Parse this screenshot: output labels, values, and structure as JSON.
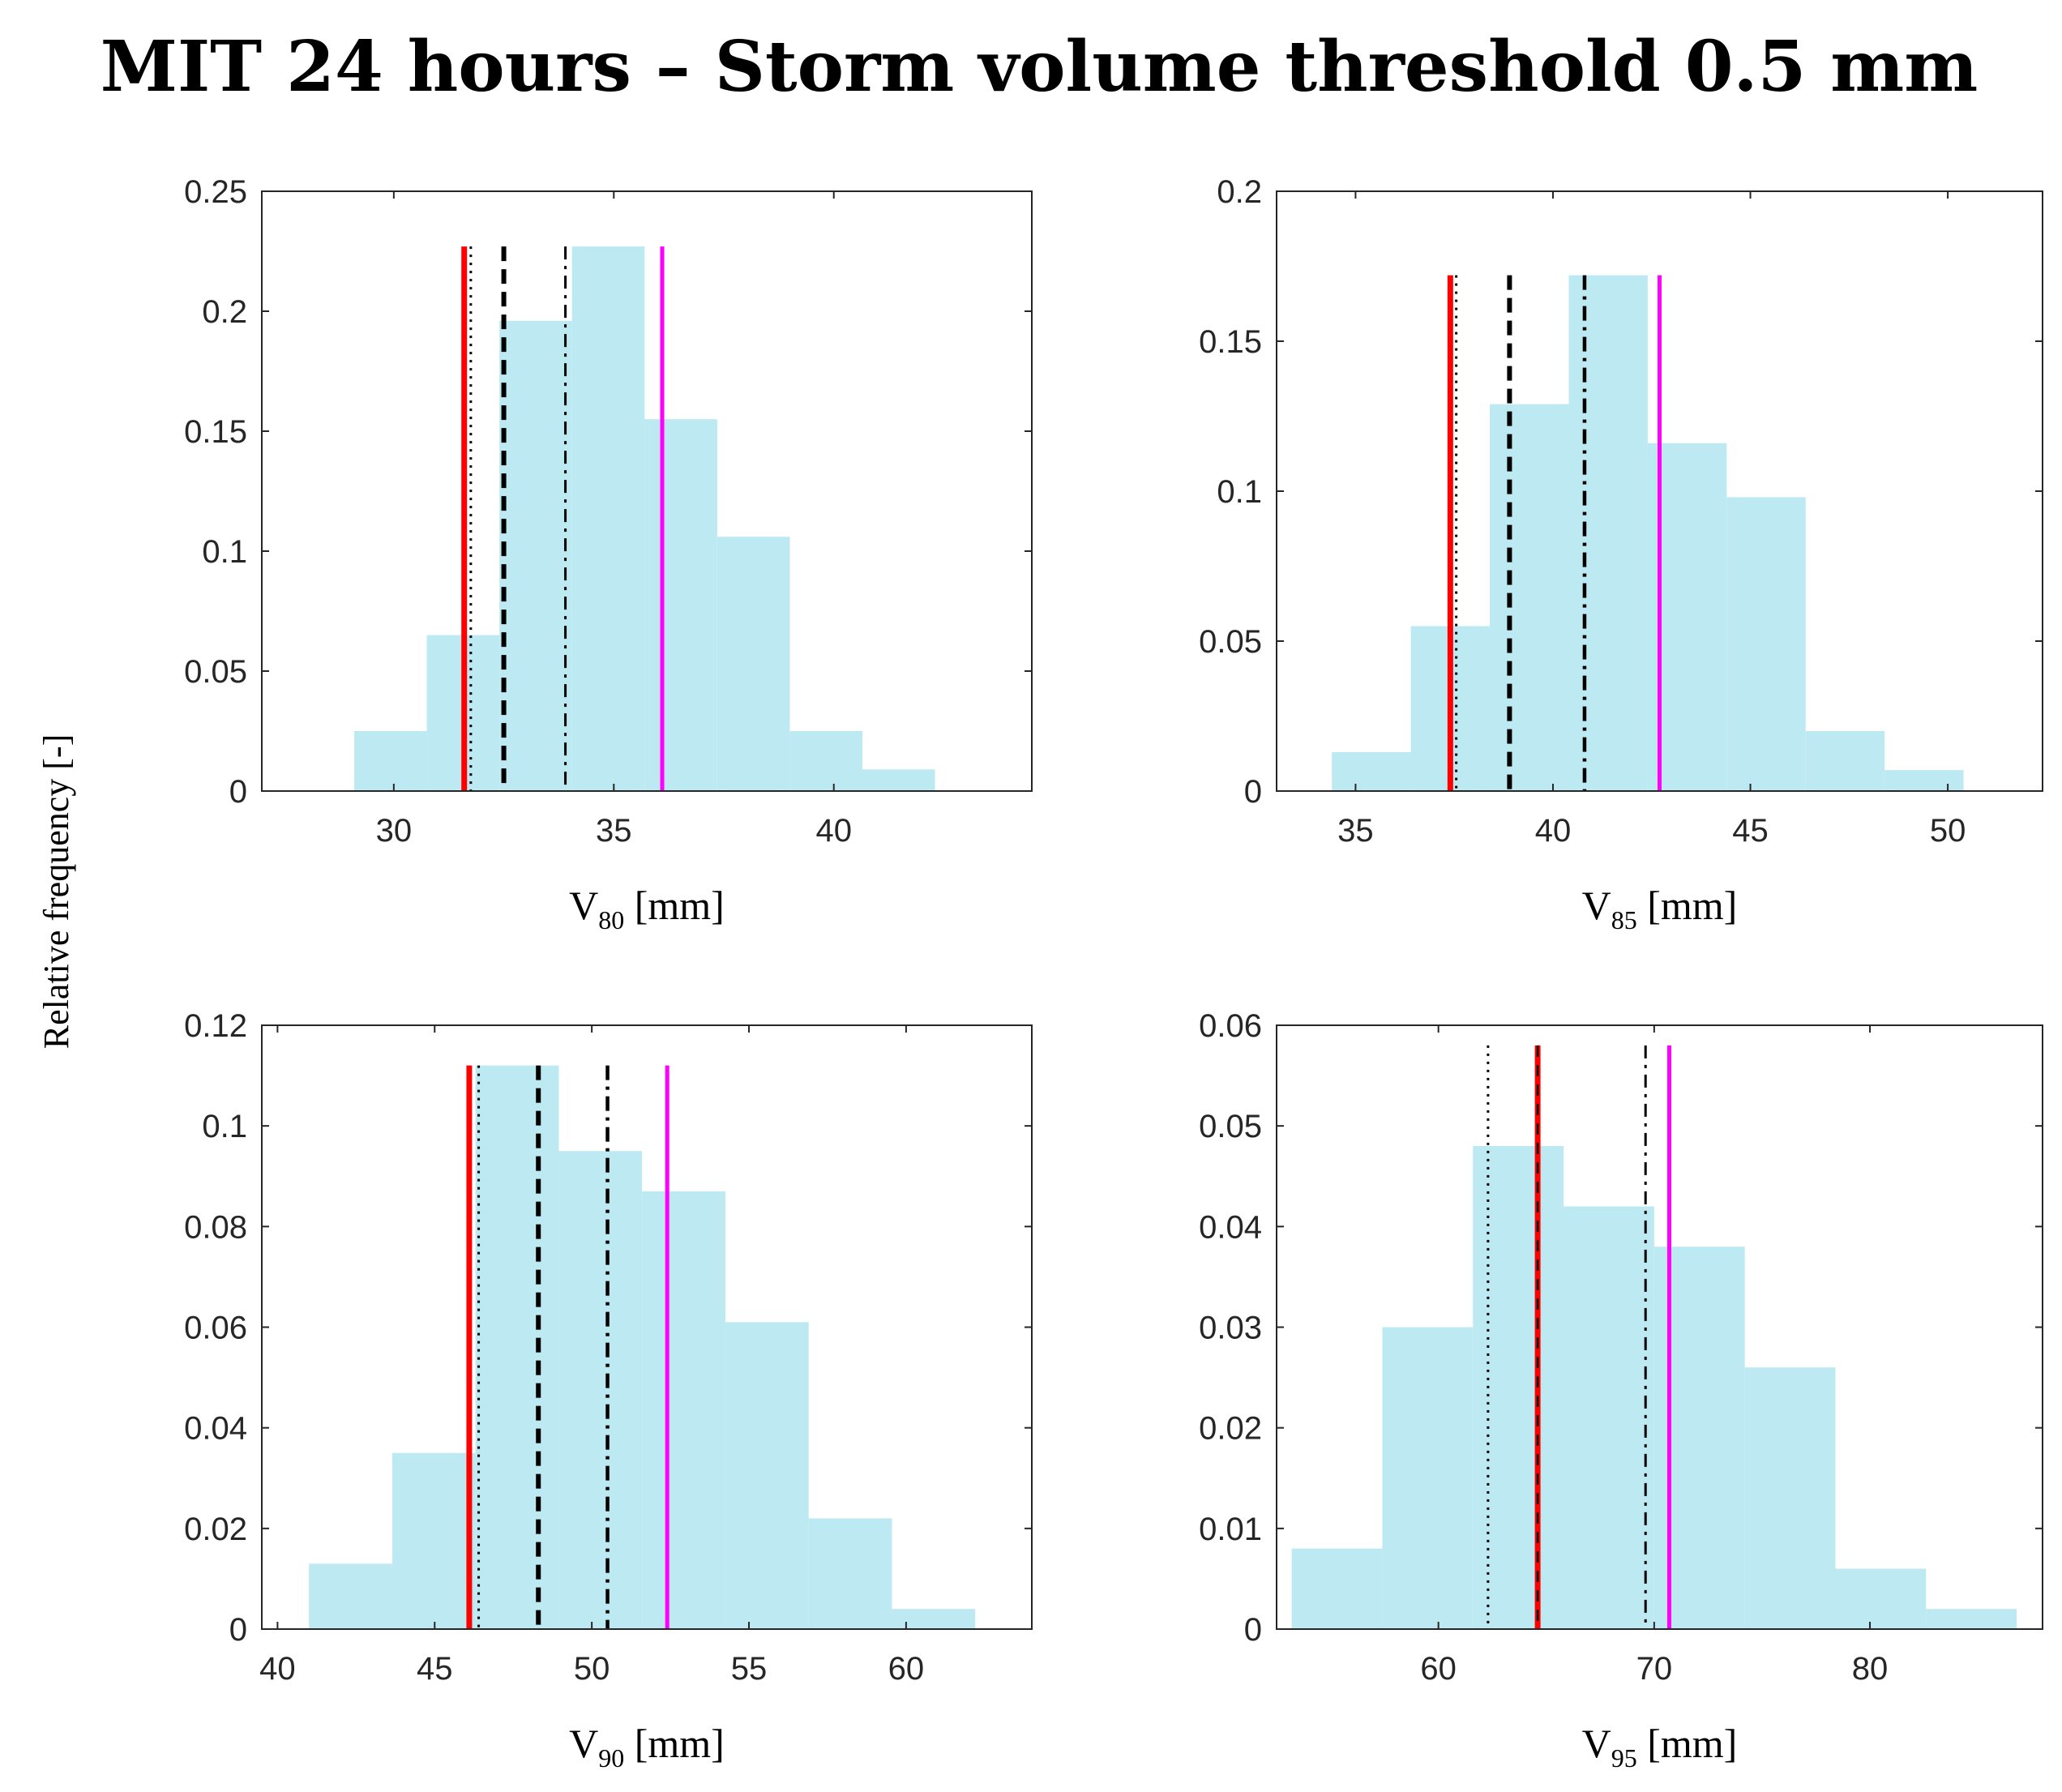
{
  "figure": {
    "title": "MIT 24 hours – Storm volume threshold 0.5 mm",
    "ylabel": "Relative frequency  [-]"
  },
  "colors": {
    "hist_fill": "#bdeaf2",
    "red": "#ff0000",
    "magenta": "#ff00ff",
    "black": "#000000"
  },
  "chart_data": [
    {
      "type": "bar",
      "id": "v80",
      "xlabel_main": "V",
      "xlabel_sub": "80",
      "xlabel_unit": " [mm]",
      "xlim": [
        27,
        44.5
      ],
      "ylim": [
        0,
        0.25
      ],
      "xticks": [
        30,
        35,
        40
      ],
      "yticks": [
        0,
        0.05,
        0.1,
        0.15,
        0.2,
        0.25
      ],
      "ytick_labels": [
        "0",
        "0.05",
        "0.1",
        "0.15",
        "0.2",
        "0.25"
      ],
      "bin_edges": [
        29.1,
        30.75,
        32.4,
        34.05,
        35.7,
        37.35,
        39.0,
        40.65,
        42.3
      ],
      "values": [
        0.025,
        0.065,
        0.196,
        0.227,
        0.155,
        0.106,
        0.025,
        0.009
      ],
      "lines": [
        {
          "x": 31.6,
          "style": "solid-red"
        },
        {
          "x": 31.75,
          "style": "dotted"
        },
        {
          "x": 32.5,
          "style": "dashed"
        },
        {
          "x": 33.9,
          "style": "dashdot-thin"
        },
        {
          "x": 36.1,
          "style": "solid-magenta"
        }
      ],
      "line_top": 0.227
    },
    {
      "type": "bar",
      "id": "v85",
      "xlabel_main": "V",
      "xlabel_sub": "85",
      "xlabel_unit": " [mm]",
      "xlim": [
        33,
        52.4
      ],
      "ylim": [
        0,
        0.2
      ],
      "xticks": [
        35,
        40,
        45,
        50
      ],
      "yticks": [
        0,
        0.05,
        0.1,
        0.15,
        0.2
      ],
      "ytick_labels": [
        "0",
        "0.05",
        "0.1",
        "0.15",
        "0.2"
      ],
      "bin_edges": [
        34.4,
        36.4,
        38.4,
        40.4,
        42.4,
        44.4,
        46.4,
        48.4,
        50.4
      ],
      "values": [
        0.013,
        0.055,
        0.129,
        0.172,
        0.116,
        0.098,
        0.02,
        0.007
      ],
      "lines": [
        {
          "x": 37.4,
          "style": "solid-red"
        },
        {
          "x": 37.55,
          "style": "dotted"
        },
        {
          "x": 38.9,
          "style": "dashed"
        },
        {
          "x": 40.8,
          "style": "dashdot"
        },
        {
          "x": 42.7,
          "style": "solid-magenta"
        }
      ],
      "line_top": 0.172
    },
    {
      "type": "bar",
      "id": "v90",
      "xlabel_main": "V",
      "xlabel_sub": "90",
      "xlabel_unit": " [mm]",
      "xlim": [
        39.5,
        64
      ],
      "ylim": [
        0,
        0.12
      ],
      "xticks": [
        40,
        45,
        50,
        55,
        60
      ],
      "yticks": [
        0,
        0.02,
        0.04,
        0.06,
        0.08,
        0.1,
        0.12
      ],
      "ytick_labels": [
        "0",
        "0.02",
        "0.04",
        "0.06",
        "0.08",
        "0.1",
        "0.12"
      ],
      "bin_edges": [
        41.0,
        43.65,
        46.3,
        48.95,
        51.6,
        54.25,
        56.9,
        59.55,
        62.2
      ],
      "values": [
        0.013,
        0.035,
        0.112,
        0.095,
        0.087,
        0.061,
        0.022,
        0.004
      ],
      "lines": [
        {
          "x": 46.1,
          "style": "solid-red"
        },
        {
          "x": 46.4,
          "style": "dotted"
        },
        {
          "x": 48.3,
          "style": "dashed"
        },
        {
          "x": 50.5,
          "style": "dashdot"
        },
        {
          "x": 52.4,
          "style": "solid-magenta"
        }
      ],
      "line_top": 0.112
    },
    {
      "type": "bar",
      "id": "v95",
      "xlabel_main": "V",
      "xlabel_sub": "95",
      "xlabel_unit": " [mm]",
      "xlim": [
        52.5,
        88
      ],
      "ylim": [
        0,
        0.06
      ],
      "xticks": [
        60,
        70,
        80
      ],
      "yticks": [
        0,
        0.01,
        0.02,
        0.03,
        0.04,
        0.05,
        0.06
      ],
      "ytick_labels": [
        "0",
        "0.01",
        "0.02",
        "0.03",
        "0.04",
        "0.05",
        "0.06"
      ],
      "bin_edges": [
        53.2,
        57.4,
        61.6,
        65.8,
        70.0,
        74.2,
        78.4,
        82.6,
        86.8
      ],
      "values": [
        0.008,
        0.03,
        0.048,
        0.042,
        0.038,
        0.026,
        0.006,
        0.002
      ],
      "lines": [
        {
          "x": 62.3,
          "style": "dotted"
        },
        {
          "x": 64.6,
          "style": "solid-red-dashed"
        },
        {
          "x": 69.6,
          "style": "dashdot-thin"
        },
        {
          "x": 70.7,
          "style": "solid-magenta"
        }
      ],
      "line_top": 0.058
    }
  ]
}
